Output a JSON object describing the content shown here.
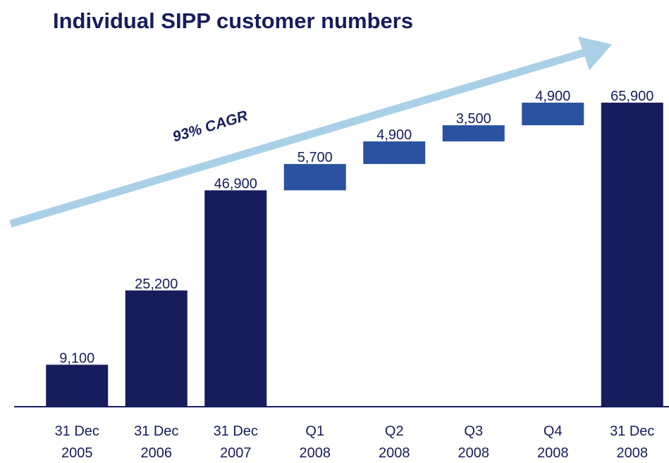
{
  "chart_data": {
    "type": "waterfall",
    "title": "Individual SIPP customer numbers",
    "annotation": "93% CAGR",
    "categories": [
      [
        "31 Dec",
        "2005"
      ],
      [
        "31 Dec",
        "2006"
      ],
      [
        "31 Dec",
        "2007"
      ],
      [
        "Q1",
        "2008"
      ],
      [
        "Q2",
        "2008"
      ],
      [
        "Q3",
        "2008"
      ],
      [
        "Q4",
        "2008"
      ],
      [
        "31 Dec",
        "2008"
      ]
    ],
    "values": [
      9100,
      25200,
      46900,
      5700,
      4900,
      3500,
      4900,
      65900
    ],
    "value_labels": [
      "9,100",
      "25,200",
      "46,900",
      "5,700",
      "4,900",
      "3,500",
      "4,900",
      "65,900"
    ],
    "kinds": [
      "total",
      "total",
      "total",
      "delta",
      "delta",
      "delta",
      "delta",
      "total"
    ],
    "colors": {
      "total": "#161c5c",
      "delta": "#2a52a0"
    },
    "ylim": [
      0,
      70000
    ]
  }
}
